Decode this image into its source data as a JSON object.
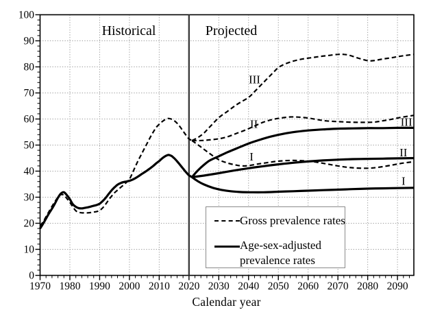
{
  "figure": {
    "xlabel": "Calendar year",
    "legend": {
      "gross_label": "Gross prevalence rates",
      "adjusted_label_line1": "Age-sex-adjusted",
      "adjusted_label_line2": "prevalence rates"
    }
  },
  "chart_data": {
    "type": "line",
    "title": "",
    "xlabel": "Calendar year",
    "ylabel": "",
    "xlim": [
      1970,
      2095.5
    ],
    "ylim": [
      0,
      100
    ],
    "x_ticks_major": [
      1970,
      1980,
      1990,
      2000,
      2010,
      2020,
      2030,
      2040,
      2050,
      2060,
      2070,
      2080,
      2090
    ],
    "y_ticks_major": [
      0,
      10,
      20,
      30,
      40,
      50,
      60,
      70,
      80,
      90,
      100
    ],
    "minor_tick_step": 2,
    "grid": "dotted",
    "grid_color": "#9a9a9a",
    "line_color": "#000000",
    "divider_year": 2020,
    "divider_color": "#3d3d3d",
    "legend_position": "lower-right-inside",
    "annotations": [
      {
        "kind": "region",
        "label": "Historical",
        "year": 1999.8,
        "value": 93.8
      },
      {
        "kind": "region",
        "label": "Projected",
        "year": 2034.2,
        "value": 93.8
      },
      {
        "kind": "curve",
        "label": "III",
        "year": 2042.0,
        "value": 75.2
      },
      {
        "kind": "curve",
        "label": "II",
        "year": 2041.8,
        "value": 58.2
      },
      {
        "kind": "curve",
        "label": "I",
        "year": 2041.0,
        "value": 45.6
      },
      {
        "kind": "curve",
        "label": "III",
        "year": 2093.0,
        "value": 58.9
      },
      {
        "kind": "curve",
        "label": "II",
        "year": 2092.0,
        "value": 47.3
      },
      {
        "kind": "curve",
        "label": "I",
        "year": 2092.0,
        "value": 36.3
      }
    ],
    "series": [
      {
        "name": "gross-historical",
        "legend": "Gross prevalence rates",
        "style": "dashed",
        "width": 2.2,
        "points": [
          [
            1970,
            19
          ],
          [
            1971,
            20.5
          ],
          [
            1972,
            22.5
          ],
          [
            1973,
            24.5
          ],
          [
            1974,
            26.5
          ],
          [
            1975,
            28.3
          ],
          [
            1976,
            30
          ],
          [
            1977,
            31
          ],
          [
            1978,
            30.8
          ],
          [
            1979,
            29.5
          ],
          [
            1980,
            28
          ],
          [
            1981,
            26.3
          ],
          [
            1982,
            24.8
          ],
          [
            1983,
            24.2
          ],
          [
            1984,
            24
          ],
          [
            1985,
            24
          ],
          [
            1986,
            24
          ],
          [
            1987,
            24.1
          ],
          [
            1988,
            24.3
          ],
          [
            1989,
            24.5
          ],
          [
            1990,
            24.9
          ],
          [
            1991,
            25.9
          ],
          [
            1992,
            27.3
          ],
          [
            1993,
            28.9
          ],
          [
            1994,
            30.4
          ],
          [
            1995,
            31.7
          ],
          [
            1996,
            32.7
          ],
          [
            1997,
            33.7
          ],
          [
            1998,
            34.7
          ],
          [
            1999,
            35.7
          ],
          [
            2000,
            36.9
          ],
          [
            2001,
            39.2
          ],
          [
            2002,
            41.8
          ],
          [
            2003,
            44.2
          ],
          [
            2004,
            46.4
          ],
          [
            2005,
            48.6
          ],
          [
            2006,
            50.8
          ],
          [
            2007,
            53
          ],
          [
            2008,
            55
          ],
          [
            2009,
            56.8
          ],
          [
            2010,
            58
          ],
          [
            2011,
            59
          ],
          [
            2012,
            59.8
          ],
          [
            2013,
            60.2
          ],
          [
            2014,
            60
          ],
          [
            2015,
            59.4
          ],
          [
            2016,
            58.4
          ],
          [
            2017,
            57
          ],
          [
            2018,
            55.4
          ],
          [
            2019,
            53.8
          ],
          [
            2020,
            52.4
          ],
          [
            2021,
            51.7
          ]
        ]
      },
      {
        "name": "adjusted-historical",
        "legend": "Age-sex-adjusted prevalence rates",
        "style": "solid",
        "width": 3.2,
        "points": [
          [
            1970,
            18
          ],
          [
            1971,
            19.8
          ],
          [
            1972,
            21.8
          ],
          [
            1973,
            23.8
          ],
          [
            1974,
            25.6
          ],
          [
            1975,
            27.6
          ],
          [
            1976,
            29.8
          ],
          [
            1977,
            31.4
          ],
          [
            1978,
            31.9
          ],
          [
            1979,
            30.8
          ],
          [
            1980,
            29.2
          ],
          [
            1981,
            27.3
          ],
          [
            1982,
            26.3
          ],
          [
            1983,
            25.8
          ],
          [
            1984,
            25.7
          ],
          [
            1985,
            25.9
          ],
          [
            1986,
            26.1
          ],
          [
            1987,
            26.4
          ],
          [
            1988,
            26.7
          ],
          [
            1989,
            27
          ],
          [
            1990,
            27.5
          ],
          [
            1991,
            28.5
          ],
          [
            1992,
            29.7
          ],
          [
            1993,
            31.2
          ],
          [
            1994,
            32.6
          ],
          [
            1995,
            33.8
          ],
          [
            1996,
            34.8
          ],
          [
            1997,
            35.4
          ],
          [
            1998,
            35.8
          ],
          [
            1999,
            36
          ],
          [
            2000,
            36.3
          ],
          [
            2001,
            36.7
          ],
          [
            2002,
            37.3
          ],
          [
            2003,
            38
          ],
          [
            2004,
            38.8
          ],
          [
            2005,
            39.5
          ],
          [
            2006,
            40.3
          ],
          [
            2007,
            41.1
          ],
          [
            2008,
            42
          ],
          [
            2009,
            43
          ],
          [
            2010,
            43.9
          ],
          [
            2011,
            44.9
          ],
          [
            2012,
            45.7
          ],
          [
            2013,
            46.2
          ],
          [
            2014,
            45.9
          ],
          [
            2015,
            45
          ],
          [
            2016,
            43.8
          ],
          [
            2017,
            42.4
          ],
          [
            2018,
            41
          ],
          [
            2019,
            39.6
          ],
          [
            2020,
            38.4
          ],
          [
            2021,
            37.7
          ]
        ]
      },
      {
        "name": "gross-projected-iii",
        "variant": "III",
        "style": "dashed",
        "width": 2.2,
        "points": [
          [
            2021,
            51.7
          ],
          [
            2023,
            52.9
          ],
          [
            2025,
            54.6
          ],
          [
            2027,
            57
          ],
          [
            2030,
            60.5
          ],
          [
            2033,
            63
          ],
          [
            2036,
            65.5
          ],
          [
            2040,
            68.3
          ],
          [
            2042,
            70.5
          ],
          [
            2045,
            74
          ],
          [
            2048,
            77.5
          ],
          [
            2050,
            79.7
          ],
          [
            2052,
            81
          ],
          [
            2055,
            82.2
          ],
          [
            2058,
            83
          ],
          [
            2061,
            83.5
          ],
          [
            2064,
            84
          ],
          [
            2067,
            84.4
          ],
          [
            2070,
            84.8
          ],
          [
            2072,
            84.8
          ],
          [
            2074,
            84.4
          ],
          [
            2077,
            83.3
          ],
          [
            2080,
            82.4
          ],
          [
            2082,
            82.4
          ],
          [
            2085,
            83
          ],
          [
            2088,
            83.5
          ],
          [
            2091,
            84.1
          ],
          [
            2095.5,
            84.8
          ]
        ]
      },
      {
        "name": "gross-projected-ii",
        "variant": "II",
        "style": "dashed",
        "width": 2.2,
        "points": [
          [
            2021,
            51.7
          ],
          [
            2023,
            51.7
          ],
          [
            2025,
            51.8
          ],
          [
            2027,
            52
          ],
          [
            2030,
            52.4
          ],
          [
            2033,
            53.2
          ],
          [
            2036,
            54.5
          ],
          [
            2039,
            55.8
          ],
          [
            2042,
            57.3
          ],
          [
            2045,
            58.8
          ],
          [
            2048,
            59.8
          ],
          [
            2051,
            60.4
          ],
          [
            2054,
            60.8
          ],
          [
            2057,
            60.7
          ],
          [
            2060,
            60.4
          ],
          [
            2063,
            59.8
          ],
          [
            2066,
            59.3
          ],
          [
            2070,
            59
          ],
          [
            2074,
            58.8
          ],
          [
            2078,
            58.7
          ],
          [
            2082,
            58.8
          ],
          [
            2085,
            59.3
          ],
          [
            2088,
            59.9
          ],
          [
            2091,
            60.6
          ],
          [
            2095.5,
            61.4
          ]
        ]
      },
      {
        "name": "gross-projected-i",
        "variant": "I",
        "style": "dashed",
        "width": 2.2,
        "points": [
          [
            2021,
            51.7
          ],
          [
            2023,
            50.1
          ],
          [
            2025,
            48.4
          ],
          [
            2027,
            46.7
          ],
          [
            2030,
            44.4
          ],
          [
            2033,
            43.1
          ],
          [
            2036,
            42.3
          ],
          [
            2038,
            42
          ],
          [
            2040,
            42.1
          ],
          [
            2043,
            42.7
          ],
          [
            2046,
            43.2
          ],
          [
            2049,
            43.7
          ],
          [
            2052,
            44
          ],
          [
            2055,
            44.1
          ],
          [
            2058,
            44
          ],
          [
            2061,
            43.7
          ],
          [
            2064,
            43.2
          ],
          [
            2067,
            42.6
          ],
          [
            2070,
            42
          ],
          [
            2073,
            41.5
          ],
          [
            2076,
            41.2
          ],
          [
            2080,
            41.1
          ],
          [
            2083,
            41.4
          ],
          [
            2086,
            41.9
          ],
          [
            2089,
            42.5
          ],
          [
            2092,
            43.1
          ],
          [
            2095.5,
            43.6
          ]
        ]
      },
      {
        "name": "adjusted-projected-iii",
        "variant": "III",
        "style": "solid",
        "width": 3.2,
        "points": [
          [
            2021,
            37.7
          ],
          [
            2023,
            40.3
          ],
          [
            2025,
            42.4
          ],
          [
            2027,
            44.1
          ],
          [
            2030,
            45.7
          ],
          [
            2033,
            47.3
          ],
          [
            2036,
            48.7
          ],
          [
            2040,
            50.6
          ],
          [
            2044,
            52.1
          ],
          [
            2048,
            53.4
          ],
          [
            2052,
            54.4
          ],
          [
            2056,
            55.1
          ],
          [
            2060,
            55.6
          ],
          [
            2065,
            56
          ],
          [
            2070,
            56.3
          ],
          [
            2075,
            56.4
          ],
          [
            2080,
            56.5
          ],
          [
            2085,
            56.5
          ],
          [
            2090,
            56.6
          ],
          [
            2095.5,
            56.6
          ]
        ]
      },
      {
        "name": "adjusted-projected-ii",
        "variant": "II",
        "style": "solid",
        "width": 3.2,
        "points": [
          [
            2021,
            37.7
          ],
          [
            2025,
            38.3
          ],
          [
            2030,
            39.2
          ],
          [
            2035,
            40.2
          ],
          [
            2040,
            41.1
          ],
          [
            2045,
            41.9
          ],
          [
            2050,
            42.6
          ],
          [
            2055,
            43.2
          ],
          [
            2060,
            43.7
          ],
          [
            2065,
            44.1
          ],
          [
            2070,
            44.4
          ],
          [
            2075,
            44.6
          ],
          [
            2080,
            44.7
          ],
          [
            2085,
            44.8
          ],
          [
            2090,
            44.9
          ],
          [
            2095.5,
            45
          ]
        ]
      },
      {
        "name": "adjusted-projected-i",
        "variant": "I",
        "style": "solid",
        "width": 3.2,
        "points": [
          [
            2021,
            37.7
          ],
          [
            2023,
            36.1
          ],
          [
            2025,
            34.9
          ],
          [
            2028,
            33.6
          ],
          [
            2031,
            32.8
          ],
          [
            2034,
            32.3
          ],
          [
            2037,
            32
          ],
          [
            2040,
            31.9
          ],
          [
            2045,
            31.9
          ],
          [
            2050,
            32.1
          ],
          [
            2055,
            32.3
          ],
          [
            2060,
            32.5
          ],
          [
            2065,
            32.7
          ],
          [
            2070,
            32.9
          ],
          [
            2075,
            33.1
          ],
          [
            2080,
            33.3
          ],
          [
            2085,
            33.4
          ],
          [
            2090,
            33.5
          ],
          [
            2095.5,
            33.6
          ]
        ]
      }
    ]
  }
}
